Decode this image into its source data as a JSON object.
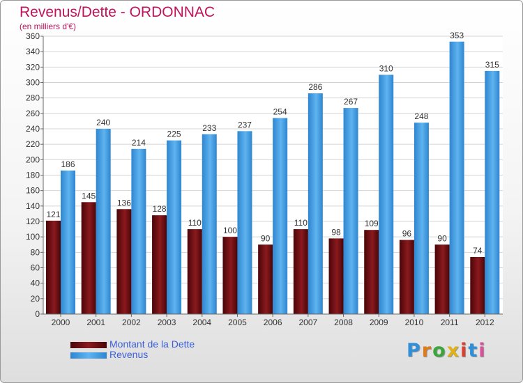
{
  "header": {
    "title": "Revenus/Dette - ORDONNAC",
    "subtitle": "(en milliers d'€)"
  },
  "chart_data": {
    "type": "bar",
    "title": "Revenus/Dette - ORDONNAC",
    "subtitle": "(en milliers d'€)",
    "xlabel": "",
    "ylabel": "",
    "categories": [
      "2000",
      "2001",
      "2002",
      "2003",
      "2004",
      "2005",
      "2006",
      "2007",
      "2008",
      "2009",
      "2010",
      "2011",
      "2012"
    ],
    "series": [
      {
        "name": "Montant de la Dette",
        "color": "#6b0a0f",
        "values": [
          121,
          145,
          136,
          128,
          110,
          100,
          90,
          110,
          98,
          109,
          96,
          90,
          74
        ]
      },
      {
        "name": "Revenus",
        "color": "#4aa3e6",
        "values": [
          186,
          240,
          214,
          225,
          233,
          237,
          254,
          286,
          267,
          310,
          248,
          353,
          315
        ]
      }
    ],
    "ylim": [
      0,
      360
    ],
    "yticks": [
      0,
      20,
      40,
      60,
      80,
      100,
      120,
      140,
      160,
      180,
      200,
      220,
      240,
      260,
      280,
      300,
      320,
      340,
      360
    ],
    "grid": true,
    "legend_position": "bottom-left"
  },
  "logo": {
    "text": "Proxiti"
  }
}
